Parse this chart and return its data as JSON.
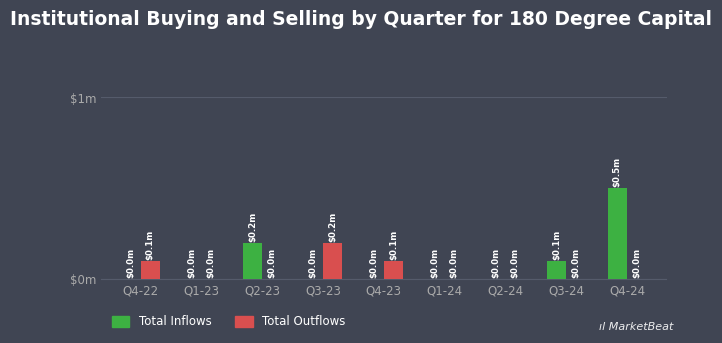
{
  "title": "Institutional Buying and Selling by Quarter for 180 Degree Capital",
  "quarters": [
    "Q4-22",
    "Q1-23",
    "Q2-23",
    "Q3-23",
    "Q4-23",
    "Q1-24",
    "Q2-24",
    "Q3-24",
    "Q4-24"
  ],
  "inflows": [
    0.0,
    0.0,
    0.2,
    0.0,
    0.0,
    0.0,
    0.0,
    0.1,
    0.5
  ],
  "outflows": [
    0.1,
    0.0,
    0.0,
    0.2,
    0.1,
    0.0,
    0.0,
    0.0,
    0.0
  ],
  "inflow_labels": [
    "$0.0m",
    "$0.0m",
    "$0.2m",
    "$0.0m",
    "$0.0m",
    "$0.0m",
    "$0.0m",
    "$0.1m",
    "$0.5m"
  ],
  "outflow_labels": [
    "$0.1m",
    "$0.0m",
    "$0.0m",
    "$0.2m",
    "$0.1m",
    "$0.0m",
    "$0.0m",
    "$0.0m",
    "$0.0m"
  ],
  "inflow_color": "#3db142",
  "outflow_color": "#d94f4f",
  "bg_color": "#404553",
  "text_color": "#ffffff",
  "grid_color": "#555b6b",
  "axis_label_color": "#aaaaaa",
  "ylim": [
    0,
    1.0
  ],
  "bar_width": 0.32,
  "title_fontsize": 13.5,
  "label_fontsize": 6.2,
  "tick_fontsize": 8.5,
  "legend_label_inflows": "Total Inflows",
  "legend_label_outflows": "Total Outflows"
}
